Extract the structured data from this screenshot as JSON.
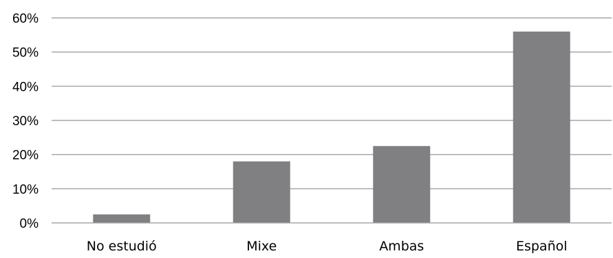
{
  "chart_data": {
    "type": "bar",
    "title": "",
    "xlabel": "",
    "ylabel": "",
    "categories": [
      "No estudió",
      "Mixe",
      "Ambas",
      "Español"
    ],
    "values": [
      2.5,
      18,
      22.5,
      56
    ],
    "ylim": [
      0,
      60
    ],
    "yticks": [
      0,
      10,
      20,
      30,
      40,
      50,
      60
    ],
    "ytick_labels": [
      "0%",
      "10%",
      "20%",
      "30%",
      "40%",
      "50%",
      "60%"
    ],
    "grid": true,
    "legend": "none",
    "colors": {
      "bar": "#808083",
      "grid": "#a6a6a6",
      "text": "#000000"
    }
  }
}
